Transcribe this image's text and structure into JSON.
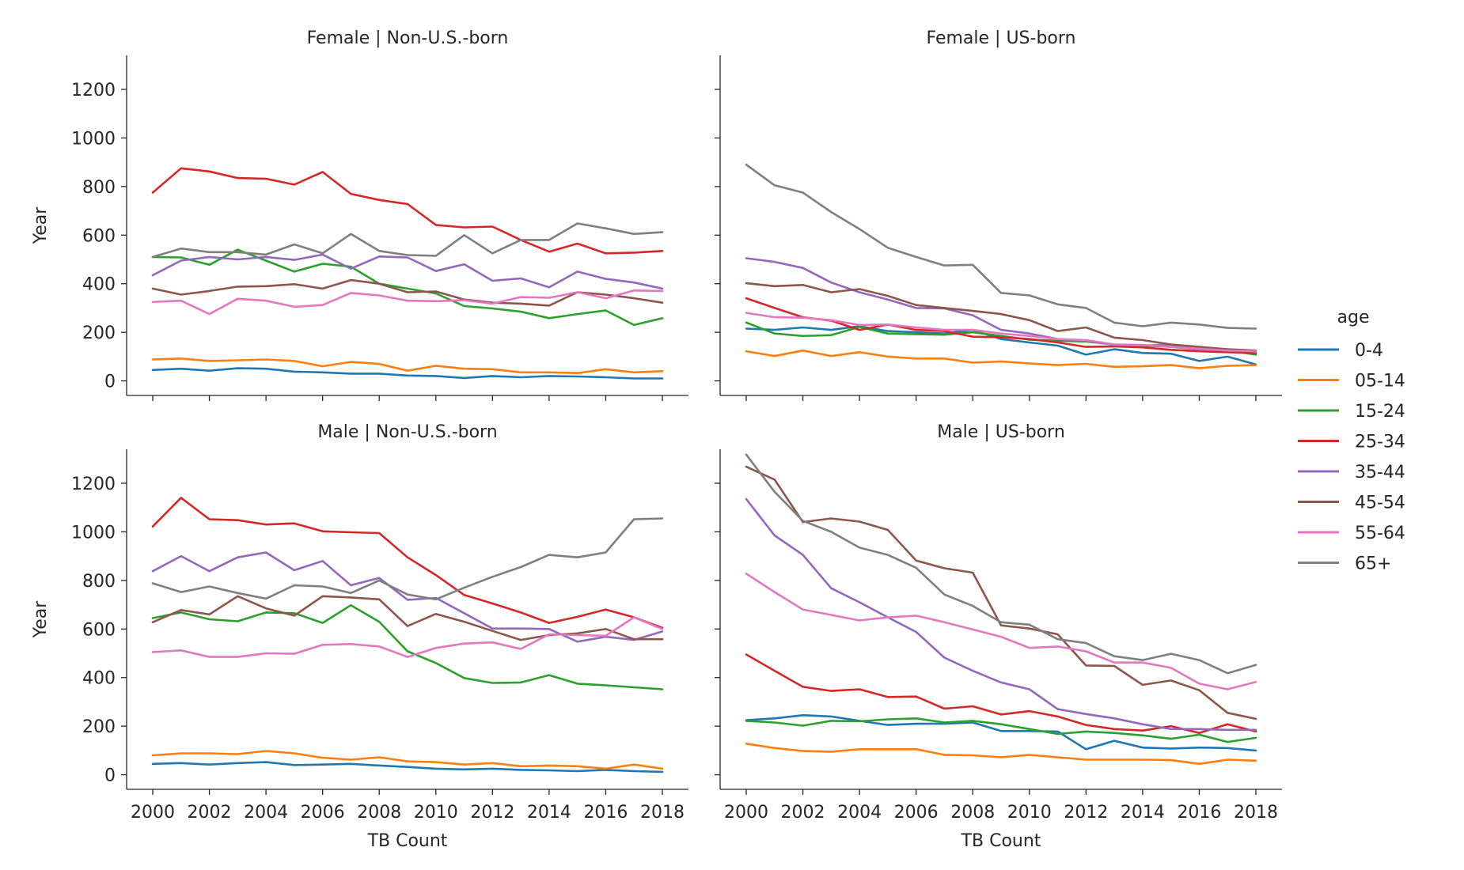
{
  "chart_data": {
    "type": "line",
    "layout": "facet-grid 2x2",
    "xlabel": "TB Count",
    "ylabel": "Year",
    "xlim": [
      2000,
      2018
    ],
    "ylim": [
      0,
      1300
    ],
    "xticks": [
      2000,
      2002,
      2004,
      2006,
      2008,
      2010,
      2012,
      2014,
      2016,
      2018
    ],
    "yticks": [
      0,
      200,
      400,
      600,
      800,
      1000,
      1200
    ],
    "legend": {
      "title": "age",
      "placement": "right",
      "entries": [
        "0-4",
        "05-14",
        "15-24",
        "25-34",
        "35-44",
        "45-54",
        "55-64",
        "65+"
      ]
    },
    "colors": {
      "0-4": "#1f77b4",
      "05-14": "#ff7f0e",
      "15-24": "#2ca02c",
      "25-34": "#d62728",
      "35-44": "#9467bd",
      "45-54": "#8c564b",
      "55-64": "#e377c2",
      "65+": "#7f7f7f"
    },
    "x": [
      2000,
      2001,
      2002,
      2003,
      2004,
      2005,
      2006,
      2007,
      2008,
      2009,
      2010,
      2011,
      2012,
      2013,
      2014,
      2015,
      2016,
      2017,
      2018
    ],
    "panels": [
      {
        "title": "Female | Non-U.S.-born",
        "series": [
          {
            "name": "0-4",
            "values": [
              45,
              50,
              42,
              52,
              50,
              38,
              35,
              30,
              30,
              22,
              20,
              12,
              20,
              15,
              20,
              18,
              15,
              10,
              10
            ]
          },
          {
            "name": "05-14",
            "values": [
              88,
              92,
              82,
              85,
              88,
              82,
              60,
              78,
              70,
              42,
              62,
              50,
              48,
              35,
              35,
              32,
              48,
              35,
              40
            ]
          },
          {
            "name": "15-24",
            "values": [
              510,
              508,
              478,
              540,
              495,
              450,
              482,
              470,
              400,
              380,
              360,
              308,
              298,
              285,
              258,
              275,
              290,
              230,
              258
            ]
          },
          {
            "name": "25-34",
            "values": [
              775,
              875,
              862,
              835,
              832,
              808,
              860,
              770,
              745,
              728,
              642,
              632,
              635,
              580,
              532,
              565,
              525,
              528,
              535
            ]
          },
          {
            "name": "35-44",
            "values": [
              435,
              495,
              510,
              500,
              510,
              498,
              520,
              462,
              512,
              508,
              452,
              480,
              412,
              422,
              385,
              450,
              420,
              405,
              380
            ]
          },
          {
            "name": "45-54",
            "values": [
              380,
              355,
              370,
              388,
              390,
              398,
              380,
              415,
              400,
              365,
              368,
              335,
              322,
              318,
              310,
              365,
              355,
              340,
              322
            ]
          },
          {
            "name": "55-64",
            "values": [
              325,
              330,
              275,
              338,
              330,
              305,
              312,
              362,
              352,
              330,
              328,
              332,
              318,
              345,
              342,
              365,
              340,
              372,
              370
            ]
          },
          {
            "name": "65+",
            "values": [
              510,
              545,
              530,
              530,
              520,
              562,
              525,
              605,
              535,
              518,
              515,
              600,
              525,
              580,
              580,
              648,
              628,
              605,
              612
            ]
          }
        ]
      },
      {
        "title": "Female | US-born",
        "series": [
          {
            "name": "0-4",
            "values": [
              215,
              210,
              220,
              210,
              225,
              205,
              200,
              195,
              210,
              172,
              158,
              145,
              108,
              130,
              115,
              112,
              82,
              100,
              68
            ]
          },
          {
            "name": "05-14",
            "values": [
              122,
              102,
              125,
              102,
              118,
              100,
              92,
              92,
              75,
              80,
              72,
              65,
              70,
              58,
              60,
              65,
              52,
              62,
              65
            ]
          },
          {
            "name": "15-24",
            "values": [
              240,
              195,
              185,
              188,
              222,
              195,
              192,
              190,
              200,
              185,
              170,
              165,
              162,
              150,
              145,
              140,
              130,
              125,
              108
            ]
          },
          {
            "name": "25-34",
            "values": [
              340,
              300,
              262,
              248,
              210,
              232,
              210,
              205,
              182,
              180,
              172,
              158,
              140,
              142,
              138,
              128,
              122,
              118,
              115
            ]
          },
          {
            "name": "35-44",
            "values": [
              505,
              490,
              465,
              405,
              365,
              335,
              300,
              298,
              270,
              210,
              195,
              172,
              165,
              148,
              145,
              150,
              128,
              128,
              120
            ]
          },
          {
            "name": "45-54",
            "values": [
              402,
              390,
              395,
              365,
              378,
              350,
              312,
              300,
              288,
              275,
              250,
              205,
              220,
              178,
              168,
              150,
              140,
              130,
              125
            ]
          },
          {
            "name": "55-64",
            "values": [
              280,
              262,
              260,
              250,
              230,
              232,
              220,
              210,
              210,
              195,
              185,
              172,
              168,
              150,
              148,
              140,
              132,
              125,
              122
            ]
          },
          {
            "name": "65+",
            "values": [
              890,
              805,
              775,
              695,
              625,
              548,
              510,
              475,
              478,
              362,
              352,
              315,
              300,
              240,
              225,
              240,
              232,
              218,
              215
            ]
          }
        ]
      },
      {
        "title": "Male | Non-U.S.-born",
        "series": [
          {
            "name": "0-4",
            "values": [
              45,
              48,
              42,
              48,
              52,
              40,
              42,
              45,
              38,
              32,
              25,
              22,
              25,
              20,
              18,
              15,
              20,
              15,
              12
            ]
          },
          {
            "name": "05-14",
            "values": [
              80,
              88,
              88,
              85,
              98,
              88,
              70,
              62,
              72,
              55,
              52,
              42,
              48,
              35,
              38,
              35,
              25,
              42,
              25
            ]
          },
          {
            "name": "15-24",
            "values": [
              645,
              668,
              640,
              632,
              668,
              665,
              625,
              698,
              630,
              508,
              460,
              398,
              378,
              380,
              410,
              375,
              368,
              360,
              352
            ]
          },
          {
            "name": "25-34",
            "values": [
              1022,
              1140,
              1052,
              1048,
              1030,
              1035,
              1002,
              998,
              995,
              895,
              822,
              740,
              705,
              668,
              625,
              650,
              680,
              648,
              605
            ]
          },
          {
            "name": "35-44",
            "values": [
              838,
              900,
              838,
              895,
              915,
              842,
              880,
              780,
              810,
              720,
              728,
              665,
              602,
              602,
              600,
              548,
              568,
              555,
              590
            ]
          },
          {
            "name": "45-54",
            "values": [
              628,
              678,
              660,
              735,
              685,
              655,
              735,
              730,
              722,
              612,
              662,
              630,
              592,
              555,
              575,
              582,
              600,
              558,
              558
            ]
          },
          {
            "name": "55-64",
            "values": [
              505,
              512,
              485,
              485,
              500,
              498,
              535,
              538,
              528,
              485,
              522,
              540,
              545,
              518,
              578,
              575,
              572,
              648,
              600
            ]
          },
          {
            "name": "65+",
            "values": [
              788,
              752,
              775,
              748,
              725,
              780,
              775,
              748,
              800,
              742,
              722,
              770,
              815,
              855,
              905,
              895,
              915,
              1052,
              1055
            ]
          }
        ]
      },
      {
        "title": "Male | US-born",
        "series": [
          {
            "name": "0-4",
            "values": [
              225,
              232,
              245,
              240,
              222,
              205,
              210,
              210,
              215,
              180,
              180,
              178,
              105,
              140,
              112,
              108,
              112,
              110,
              100
            ]
          },
          {
            "name": "05-14",
            "values": [
              128,
              110,
              98,
              95,
              105,
              105,
              105,
              82,
              80,
              72,
              82,
              72,
              62,
              62,
              62,
              60,
              45,
              62,
              58
            ]
          },
          {
            "name": "15-24",
            "values": [
              222,
              215,
              202,
              222,
              220,
              228,
              232,
              215,
              222,
              208,
              188,
              168,
              178,
              172,
              162,
              148,
              165,
              135,
              152
            ]
          },
          {
            "name": "25-34",
            "values": [
              495,
              428,
              362,
              345,
              352,
              320,
              322,
              272,
              282,
              248,
              262,
              240,
              205,
              188,
              182,
              200,
              172,
              208,
              178
            ]
          },
          {
            "name": "35-44",
            "values": [
              1135,
              985,
              905,
              768,
              710,
              648,
              588,
              482,
              428,
              380,
              352,
              270,
              250,
              232,
              208,
              188,
              188,
              185,
              185
            ]
          },
          {
            "name": "45-54",
            "values": [
              1268,
              1215,
              1040,
              1055,
              1042,
              1008,
              882,
              850,
              832,
              615,
              602,
              578,
              450,
              448,
              370,
              388,
              348,
              255,
              230
            ]
          },
          {
            "name": "55-64",
            "values": [
              828,
              752,
              680,
              658,
              635,
              648,
              655,
              628,
              598,
              568,
              522,
              528,
              508,
              462,
              462,
              440,
              375,
              352,
              382
            ]
          },
          {
            "name": "65+",
            "values": [
              1318,
              1165,
              1045,
              1000,
              935,
              905,
              852,
              742,
              695,
              628,
              618,
              558,
              542,
              488,
              472,
              498,
              472,
              418,
              452
            ]
          }
        ]
      }
    ]
  }
}
